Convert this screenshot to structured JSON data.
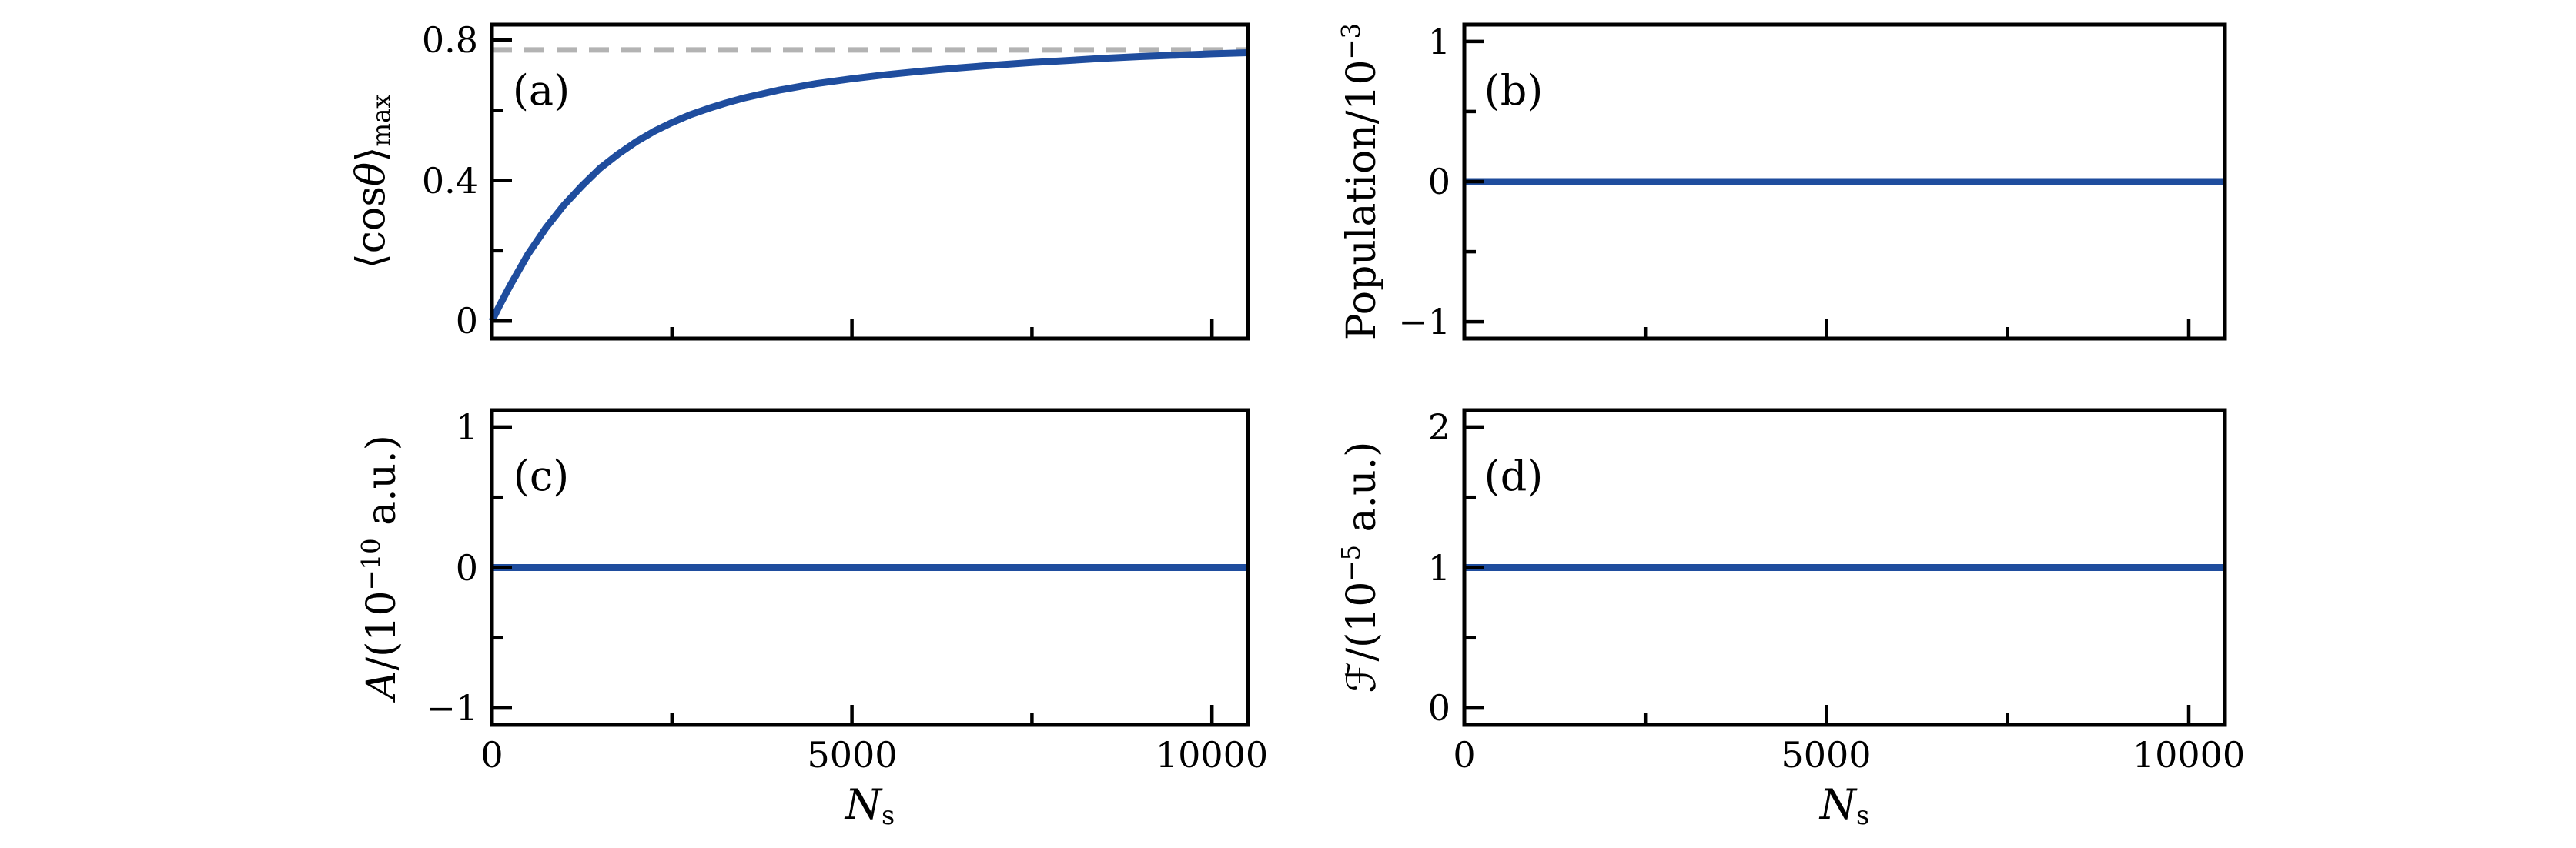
{
  "figure": {
    "background": "#ffffff",
    "colors": {
      "line": "#1f4d9e",
      "dashed": "#b3b3b3",
      "axis": "#000000",
      "text": "#000000"
    }
  },
  "chart_data": [
    {
      "id": "a",
      "label": "(a)",
      "type": "line",
      "xlabel": "Ns",
      "ylabel": "⟨cosθ⟩max",
      "ylabel_segments": [
        {
          "v": "⟨cos"
        },
        {
          "v": "θ",
          "style": "italic"
        },
        {
          "v": "⟩"
        },
        {
          "v": "max",
          "pos": "sub"
        }
      ],
      "xlim": [
        0,
        10500
      ],
      "ylim": [
        -0.05,
        0.844
      ],
      "xticks": {
        "major": [
          0,
          5000,
          10000
        ],
        "minor": [
          2500,
          7500
        ],
        "labels": [
          "0",
          "5000",
          "10000"
        ]
      },
      "yticks": {
        "major": [
          0,
          0.4,
          0.8
        ],
        "minor": [
          0.2,
          0.6
        ],
        "labels": [
          "0",
          "0.4",
          "0.8"
        ]
      },
      "show_xtick_labels": false,
      "grid": false,
      "dashed_line": 0.772,
      "series": [
        {
          "name": "alignment-maximum-curve",
          "points": [
            [
              0,
              0
            ],
            [
              100,
              0.042
            ],
            [
              250,
              0.1
            ],
            [
              500,
              0.19
            ],
            [
              750,
              0.265
            ],
            [
              1000,
              0.33
            ],
            [
              1250,
              0.385
            ],
            [
              1500,
              0.435
            ],
            [
              1750,
              0.475
            ],
            [
              2000,
              0.51
            ],
            [
              2250,
              0.54
            ],
            [
              2500,
              0.565
            ],
            [
              2750,
              0.587
            ],
            [
              3000,
              0.605
            ],
            [
              3250,
              0.621
            ],
            [
              3500,
              0.635
            ],
            [
              4000,
              0.658
            ],
            [
              4500,
              0.676
            ],
            [
              5000,
              0.69
            ],
            [
              5500,
              0.702
            ],
            [
              6000,
              0.712
            ],
            [
              6500,
              0.721
            ],
            [
              7000,
              0.729
            ],
            [
              7500,
              0.736
            ],
            [
              8000,
              0.742
            ],
            [
              8500,
              0.748
            ],
            [
              9000,
              0.753
            ],
            [
              9500,
              0.757
            ],
            [
              10000,
              0.761
            ],
            [
              10500,
              0.764
            ]
          ]
        }
      ]
    },
    {
      "id": "b",
      "label": "(b)",
      "type": "line",
      "xlabel": "Ns",
      "ylabel": "Population/10−3",
      "ylabel_segments": [
        {
          "v": "Population/10"
        },
        {
          "v": "−3",
          "pos": "sup"
        }
      ],
      "xlim": [
        0,
        10500
      ],
      "ylim": [
        -1.12,
        1.12
      ],
      "xticks": {
        "major": [
          0,
          5000,
          10000
        ],
        "minor": [
          2500,
          7500
        ],
        "labels": [
          "0",
          "5000",
          "10000"
        ]
      },
      "yticks": {
        "major": [
          -1,
          0,
          1
        ],
        "minor": [
          -0.5,
          0.5
        ],
        "labels": [
          "−1",
          "0",
          "1"
        ]
      },
      "show_xtick_labels": false,
      "grid": false,
      "series": [
        {
          "name": "population",
          "points": [
            [
              0,
              0
            ],
            [
              10500,
              0
            ]
          ]
        }
      ]
    },
    {
      "id": "c",
      "label": "(c)",
      "type": "line",
      "xlabel": "Ns",
      "ylabel": "A/(10−10 a.u.)",
      "ylabel_segments": [
        {
          "v": "A",
          "style": "italic"
        },
        {
          "v": "/(10"
        },
        {
          "v": "−10",
          "pos": "sup"
        },
        {
          "v": " a.u.)"
        }
      ],
      "xlabel_segments": [
        {
          "v": "N",
          "style": "italic"
        },
        {
          "v": "s",
          "pos": "sub"
        }
      ],
      "xlim": [
        0,
        10500
      ],
      "ylim": [
        -1.12,
        1.12
      ],
      "xticks": {
        "major": [
          0,
          5000,
          10000
        ],
        "minor": [
          2500,
          7500
        ],
        "labels": [
          "0",
          "5000",
          "10000"
        ]
      },
      "yticks": {
        "major": [
          -1,
          0,
          1
        ],
        "minor": [
          -0.5,
          0.5
        ],
        "labels": [
          "−1",
          "0",
          "1"
        ]
      },
      "show_xtick_labels": true,
      "grid": false,
      "series": [
        {
          "name": "vector-potential",
          "points": [
            [
              0,
              0
            ],
            [
              10500,
              0
            ]
          ]
        }
      ]
    },
    {
      "id": "d",
      "label": "(d)",
      "type": "line",
      "xlabel": "Ns",
      "ylabel": "ℱ/(10−5 a.u.)",
      "ylabel_segments": [
        {
          "v": "ℱ"
        },
        {
          "v": "/(10"
        },
        {
          "v": "−5",
          "pos": "sup"
        },
        {
          "v": " a.u.)"
        }
      ],
      "xlabel_segments": [
        {
          "v": "N",
          "style": "italic"
        },
        {
          "v": "s",
          "pos": "sub"
        }
      ],
      "xlim": [
        0,
        10500
      ],
      "ylim": [
        -0.12,
        2.12
      ],
      "xticks": {
        "major": [
          0,
          5000,
          10000
        ],
        "minor": [
          2500,
          7500
        ],
        "labels": [
          "0",
          "5000",
          "10000"
        ]
      },
      "yticks": {
        "major": [
          0,
          1,
          2
        ],
        "minor": [
          0.5,
          1.5
        ],
        "labels": [
          "0",
          "1",
          "2"
        ]
      },
      "show_xtick_labels": true,
      "grid": false,
      "series": [
        {
          "name": "field-strength",
          "points": [
            [
              0,
              1
            ],
            [
              10500,
              1
            ]
          ]
        }
      ]
    }
  ]
}
